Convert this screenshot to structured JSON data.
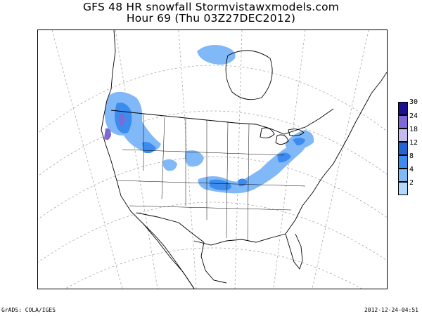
{
  "title_line1": "GFS 48 HR snowfall Stormvistawxmodels.com",
  "title_line2": "Hour 69 (Thu 03Z27DEC2012)",
  "footer_left": "GrADS: COLA/IGES",
  "footer_right": "2012-12-24-04:51",
  "legend": {
    "labels": [
      "30",
      "24",
      "18",
      "12",
      "8",
      "4",
      "2"
    ],
    "colors": [
      "#1a0f8c",
      "#7d6ad6",
      "#c4baf0",
      "#2464d2",
      "#3c8cf0",
      "#80b8f8",
      "#b4d8fc"
    ]
  },
  "colors": {
    "map_line": "#000000",
    "grid_line": "#aaaaaa",
    "snow_light": "#b4d8fc",
    "snow_mid": "#80b8f8",
    "snow_heavy": "#3c8cf0",
    "snow_purple": "#7d6ad6"
  }
}
